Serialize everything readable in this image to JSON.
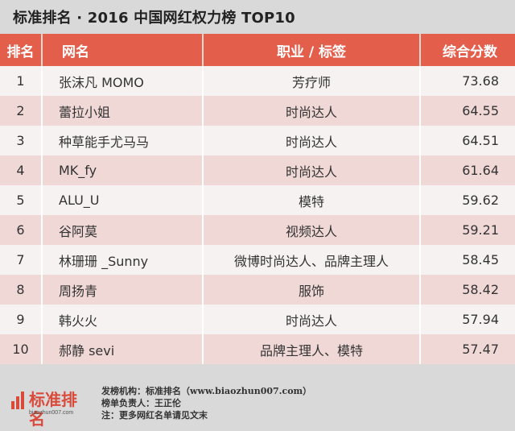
{
  "title": "标准排名 · 2016 中国网红权力榜 TOP10",
  "headers": {
    "rank": "排名",
    "name": "网名",
    "tag": "职业 / 标签",
    "score": "综合分数"
  },
  "rows": [
    {
      "rank": "1",
      "name": "张沫凡 MOMO",
      "tag": "芳疗师",
      "score": "73.68"
    },
    {
      "rank": "2",
      "name": "蕾拉小姐",
      "tag": "时尚达人",
      "score": "64.55"
    },
    {
      "rank": "3",
      "name": "种草能手尤马马",
      "tag": "时尚达人",
      "score": "64.51"
    },
    {
      "rank": "4",
      "name": "MK_fy",
      "tag": "时尚达人",
      "score": "61.64"
    },
    {
      "rank": "5",
      "name": "ALU_U",
      "tag": "模特",
      "score": "59.62"
    },
    {
      "rank": "6",
      "name": "谷阿莫",
      "tag": "视频达人",
      "score": "59.21"
    },
    {
      "rank": "7",
      "name": "林珊珊 _Sunny",
      "tag": "微博时尚达人、品牌主理人",
      "score": "58.45"
    },
    {
      "rank": "8",
      "name": "周扬青",
      "tag": "服饰",
      "score": "58.42"
    },
    {
      "rank": "9",
      "name": "韩火火",
      "tag": "时尚达人",
      "score": "57.94"
    },
    {
      "rank": "10",
      "name": "郝静 sevi",
      "tag": "品牌主理人、模特",
      "score": "57.47"
    }
  ],
  "footer": {
    "logo_name": "标准排名",
    "logo_url": "biaozhun007.com",
    "line1": "发榜机构：标准排名（www.biaozhun007.com）",
    "line2": "榜单负责人：王正伦",
    "line3": "注：更多网红名单请见文末"
  },
  "colors": {
    "header_red": "#e35f4c",
    "row_light": "#f7f2f2",
    "row_pink": "#f0d8d6",
    "background": "#d9d9d9",
    "logo_red": "#d94a3a"
  }
}
